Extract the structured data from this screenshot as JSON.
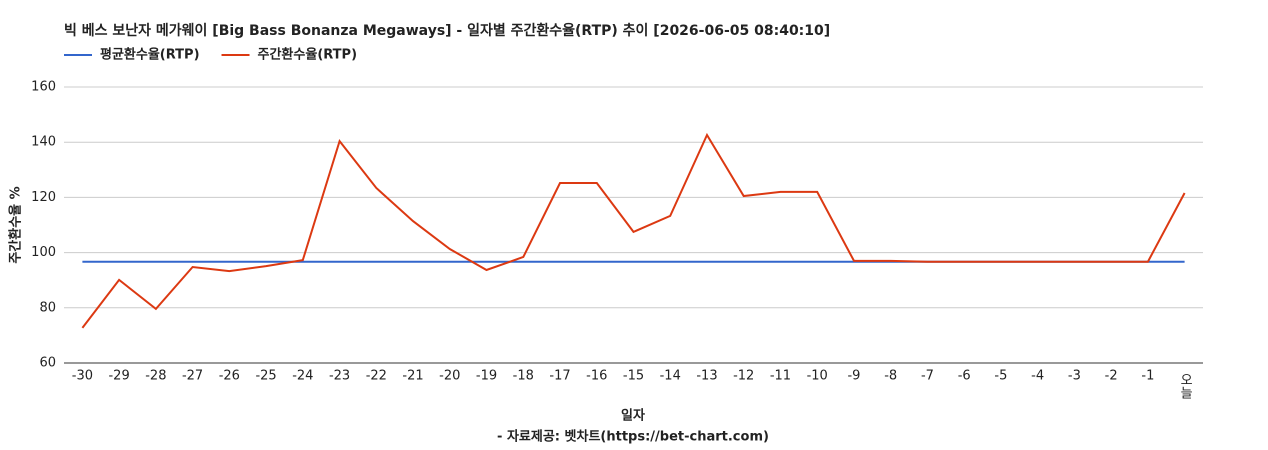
{
  "chart_data": {
    "type": "line",
    "title": "빅 베스 보난자 메가웨이 [Big Bass Bonanza Megaways] - 일자별 주간환수율(RTP) 추이 [2026-06-05 08:40:10]",
    "x_label": "일자",
    "y_label": "주간환수율 %",
    "source": "- 자료제공: 벳차트(https://bet-chart.com)",
    "categories": [
      "-30",
      "-29",
      "-28",
      "-27",
      "-26",
      "-25",
      "-24",
      "-23",
      "-22",
      "-21",
      "-20",
      "-19",
      "-18",
      "-17",
      "-16",
      "-15",
      "-14",
      "-13",
      "-12",
      "-11",
      "-10",
      "-9",
      "-8",
      "-7",
      "-6",
      "-5",
      "-4",
      "-3",
      "-2",
      "-1",
      "오늘"
    ],
    "series": [
      {
        "name": "평균환수율(RTP)",
        "color": "#3366cc",
        "values": [
          96.7,
          96.7,
          96.7,
          96.7,
          96.7,
          96.7,
          96.7,
          96.7,
          96.7,
          96.7,
          96.7,
          96.7,
          96.7,
          96.7,
          96.7,
          96.7,
          96.7,
          96.7,
          96.7,
          96.7,
          96.7,
          96.7,
          96.7,
          96.7,
          96.7,
          96.7,
          96.7,
          96.7,
          96.7,
          96.7,
          96.7
        ]
      },
      {
        "name": "주간환수율(RTP)",
        "color": "#dc3912",
        "values": [
          72.7,
          90.1,
          79.6,
          94.8,
          93.3,
          95.1,
          97.3,
          140.4,
          123.4,
          111.4,
          101.3,
          93.7,
          98.4,
          125.2,
          125.2,
          107.5,
          113.3,
          142.6,
          120.5,
          122,
          122,
          97,
          97,
          96.7,
          96.7,
          96.7,
          96.7,
          96.7,
          96.7,
          96.7,
          121.6
        ]
      }
    ],
    "ylim": [
      60,
      160
    ],
    "yticks": [
      60,
      80,
      100,
      120,
      140,
      160
    ],
    "grid": true
  }
}
